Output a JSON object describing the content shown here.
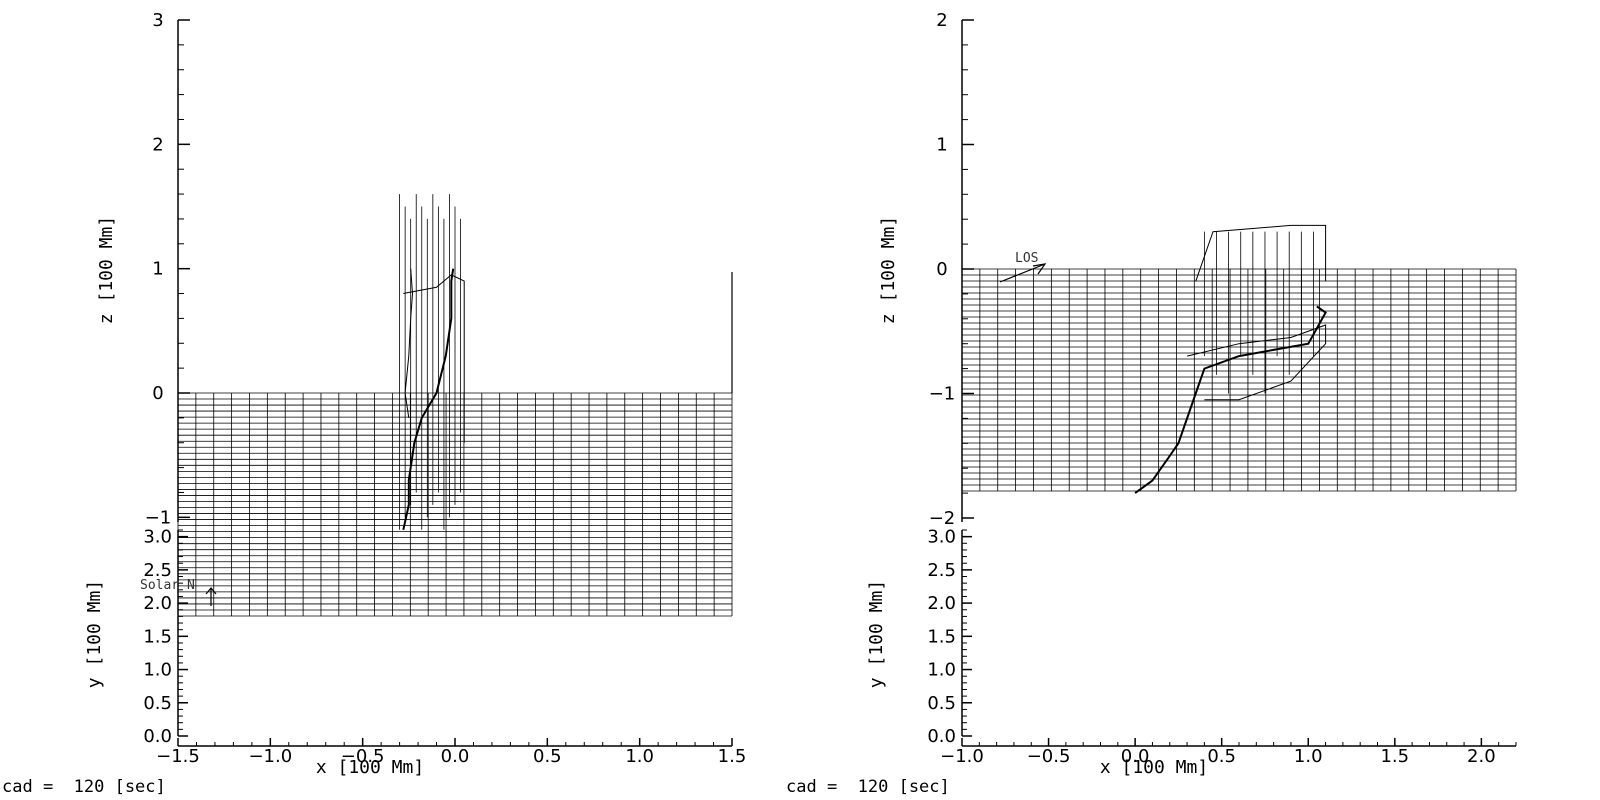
{
  "chart_data": [
    {
      "type": "line",
      "panel": "left",
      "upper_axis": {
        "ylabel": "z [100 Mm]",
        "ytick_labels": [
          "3",
          "2",
          "1",
          "0",
          "−1"
        ],
        "yticks": [
          3,
          2,
          1,
          0,
          -1
        ],
        "ylim": [
          -1.2,
          3
        ]
      },
      "lower_axis": {
        "ylabel": "y [100 Mm]",
        "ytick_labels": [
          "0.0",
          "0.5",
          "1.0",
          "1.5",
          "2.0",
          "2.5",
          "3.0"
        ],
        "yticks": [
          0,
          0.5,
          1,
          1.5,
          2,
          2.5,
          3
        ],
        "ylim": [
          0,
          3.1
        ]
      },
      "xlabel": "x [100 Mm]",
      "xtick_labels": [
        "−1.5",
        "−1.0",
        "−0.5",
        "0.0",
        "0.5",
        "1.0",
        "1.5"
      ],
      "xticks": [
        -1.5,
        -1,
        -0.5,
        0,
        0.5,
        1,
        1.5
      ],
      "xlim": [
        -1.5,
        1.5
      ],
      "annotation": "Solar N",
      "footer": "cad =  120 [sec]",
      "field_lines": [
        {
          "x": [
            -0.28,
            -0.25,
            -0.25,
            -0.22,
            -0.18,
            -0.1,
            -0.05,
            -0.02,
            -0.02,
            -0.02,
            -0.01
          ],
          "z": [
            -1.1,
            -0.9,
            -0.7,
            -0.4,
            -0.2,
            0.0,
            0.3,
            0.6,
            0.8,
            0.9,
            1.0
          ]
        },
        {
          "x": [
            -0.25,
            -0.27,
            -0.25,
            -0.24,
            -0.23,
            -0.24
          ],
          "z": [
            -0.2,
            0.0,
            0.3,
            0.6,
            0.8,
            1.0
          ]
        },
        {
          "x": [
            -0.28,
            -0.1,
            -0.02,
            0.05,
            0.05,
            0.05
          ],
          "z": [
            0.8,
            0.85,
            0.95,
            0.9,
            0.6,
            -0.4
          ]
        }
      ]
    },
    {
      "type": "line",
      "panel": "right",
      "upper_axis": {
        "ylabel": "z [100 Mm]",
        "ytick_labels": [
          "2",
          "1",
          "0",
          "−1",
          "−2"
        ],
        "yticks": [
          2,
          1,
          0,
          -1,
          -2
        ],
        "ylim": [
          -2.2,
          2
        ]
      },
      "lower_axis": {
        "ylabel": "y [100 Mm]",
        "ytick_labels": [
          "0.0",
          "0.5",
          "1.0",
          "1.5",
          "2.0",
          "2.5",
          "3.0"
        ],
        "yticks": [
          0,
          0.5,
          1,
          1.5,
          2,
          2.5,
          3
        ],
        "ylim": [
          0,
          3.1
        ]
      },
      "xlabel": "x [100 Mm]",
      "xtick_labels": [
        "−1.0",
        "−0.5",
        "0.0",
        "0.5",
        "1.0",
        "1.5",
        "2.0"
      ],
      "xticks": [
        -1,
        -0.5,
        0,
        0.5,
        1,
        1.5,
        2
      ],
      "xlim": [
        -1,
        2.2
      ],
      "annotation": "LOS",
      "footer": "cad =  120 [sec]",
      "field_lines": [
        {
          "x": [
            0.0,
            0.1,
            0.2,
            0.25,
            0.35,
            0.4,
            0.6,
            0.8,
            1.0,
            1.1,
            1.05
          ],
          "z": [
            -1.8,
            -1.7,
            -1.5,
            -1.4,
            -1.0,
            -0.8,
            -0.7,
            -0.65,
            -0.6,
            -0.35,
            -0.3
          ]
        },
        {
          "x": [
            0.3,
            0.6,
            0.9,
            1.1,
            1.1,
            0.9,
            0.6,
            0.4
          ],
          "z": [
            -0.7,
            -0.6,
            -0.55,
            -0.45,
            -0.6,
            -0.9,
            -1.05,
            -1.05
          ]
        },
        {
          "x": [
            0.35,
            0.45,
            0.9,
            1.1,
            1.1
          ],
          "z": [
            -0.1,
            0.3,
            0.35,
            0.35,
            -0.1
          ]
        }
      ]
    }
  ]
}
